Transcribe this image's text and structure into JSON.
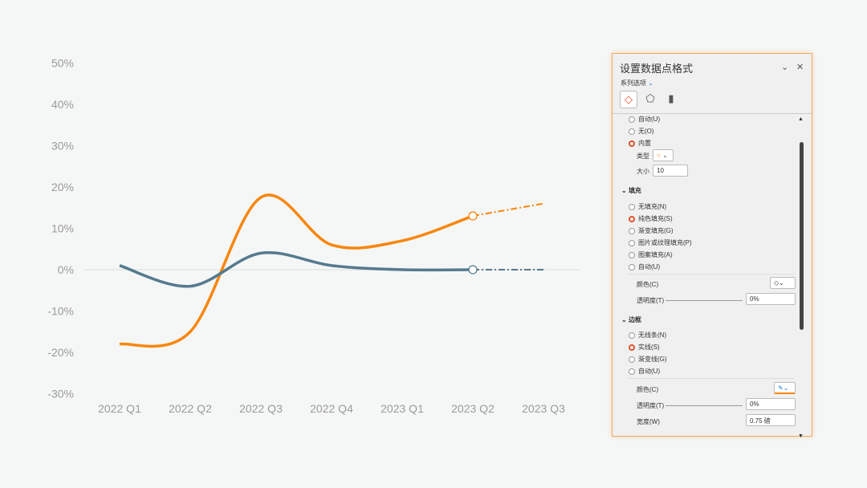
{
  "chart_data": {
    "type": "line",
    "categories": [
      "2022 Q1",
      "2022 Q2",
      "2022 Q3",
      "2022 Q4",
      "2023 Q1",
      "2023 Q2",
      "2023 Q3"
    ],
    "ylim": [
      -30,
      50
    ],
    "yticks": [
      "-30%",
      "-20%",
      "-10%",
      "0%",
      "10%",
      "20%",
      "30%",
      "40%",
      "50%"
    ],
    "smooth": true,
    "forecast_from": "2023 Q2",
    "series": [
      {
        "color": "#f7870f",
        "values": [
          -18,
          -15,
          17.5,
          6,
          7,
          13,
          16
        ]
      },
      {
        "color": "#557a8e",
        "values": [
          1,
          -4,
          4,
          1,
          0,
          0,
          0
        ]
      }
    ]
  },
  "pane": {
    "title": "设置数据点格式",
    "subtitle": "系列选项",
    "marker": {
      "options": [
        "自动(U)",
        "无(O)",
        "内置"
      ],
      "selected": 2,
      "type_label": "类型",
      "size_label": "大小",
      "size": "10"
    },
    "fill": {
      "header": "填充",
      "options": [
        "无填充(N)",
        "纯色填充(S)",
        "渐变填充(G)",
        "图片或纹理填充(P)",
        "图案填充(A)",
        "自动(U)"
      ],
      "selected": 1,
      "color_label": "颜色(C)",
      "transparency_label": "透明度(T)",
      "transparency": "0%"
    },
    "border": {
      "header": "边框",
      "options": [
        "无线条(N)",
        "实线(S)",
        "渐变线(G)",
        "自动(U)"
      ],
      "selected": 1,
      "color_label": "颜色(C)",
      "transparency_label": "透明度(T)",
      "transparency": "0%",
      "width_label": "宽度(W)",
      "width": "0.75 磅"
    }
  }
}
